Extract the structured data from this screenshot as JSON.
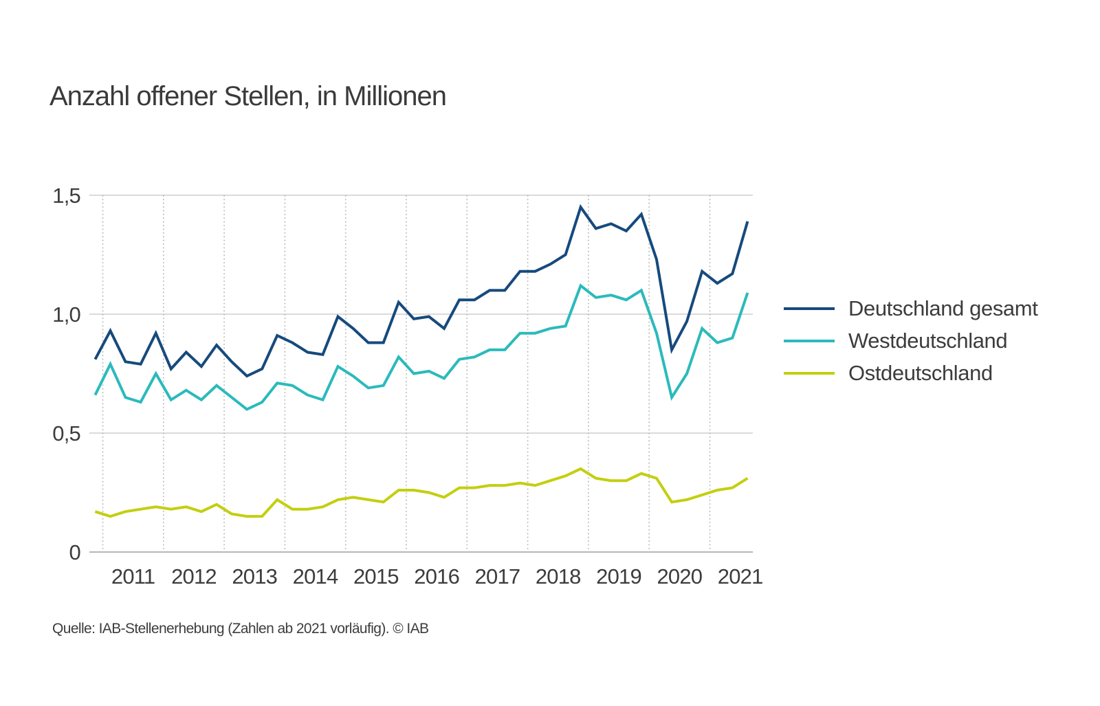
{
  "title": "Anzahl offener Stellen, in Millionen",
  "source": "Quelle: IAB-Stellenerhebung (Zahlen ab 2021 vorläufig). © IAB",
  "chart_data": {
    "type": "line",
    "title": "Anzahl offener Stellen, in Millionen",
    "xlabel": "",
    "ylabel": "Anzahl offener Stellen in Millionen",
    "ylim": [
      0,
      1.5
    ],
    "yticks": [
      "0",
      "0,5",
      "1,0",
      "1,5"
    ],
    "ytick_values": [
      0,
      0.5,
      1.0,
      1.5
    ],
    "grid": {
      "horizontal": "solid",
      "vertical": "dotted-per-year"
    },
    "legend_position": "right",
    "x_unit": "quarter",
    "year_labels": [
      "2011",
      "2012",
      "2013",
      "2014",
      "2015",
      "2016",
      "2017",
      "2018",
      "2019",
      "2020",
      "2021"
    ],
    "x": [
      "2010 Q4",
      "2011 Q1",
      "2011 Q2",
      "2011 Q3",
      "2011 Q4",
      "2012 Q1",
      "2012 Q2",
      "2012 Q3",
      "2012 Q4",
      "2013 Q1",
      "2013 Q2",
      "2013 Q3",
      "2013 Q4",
      "2014 Q1",
      "2014 Q2",
      "2014 Q3",
      "2014 Q4",
      "2015 Q1",
      "2015 Q2",
      "2015 Q3",
      "2015 Q4",
      "2016 Q1",
      "2016 Q2",
      "2016 Q3",
      "2016 Q4",
      "2017 Q1",
      "2017 Q2",
      "2017 Q3",
      "2017 Q4",
      "2018 Q1",
      "2018 Q2",
      "2018 Q3",
      "2018 Q4",
      "2019 Q1",
      "2019 Q2",
      "2019 Q3",
      "2019 Q4",
      "2020 Q1",
      "2020 Q2",
      "2020 Q3",
      "2020 Q4",
      "2021 Q1",
      "2021 Q2",
      "2021 Q3"
    ],
    "series": [
      {
        "name": "Deutschland gesamt",
        "color": "#164a7d",
        "values": [
          0.81,
          0.93,
          0.8,
          0.79,
          0.92,
          0.77,
          0.84,
          0.78,
          0.87,
          0.8,
          0.74,
          0.77,
          0.91,
          0.88,
          0.84,
          0.83,
          0.99,
          0.94,
          0.88,
          0.88,
          1.05,
          0.98,
          0.99,
          0.94,
          1.06,
          1.06,
          1.1,
          1.1,
          1.18,
          1.18,
          1.21,
          1.25,
          1.45,
          1.36,
          1.38,
          1.35,
          1.42,
          1.23,
          0.85,
          0.97,
          1.18,
          1.13,
          1.17,
          1.39
        ]
      },
      {
        "name": "Westdeutschland",
        "color": "#2bbabc",
        "values": [
          0.66,
          0.79,
          0.65,
          0.63,
          0.75,
          0.64,
          0.68,
          0.64,
          0.7,
          0.65,
          0.6,
          0.63,
          0.71,
          0.7,
          0.66,
          0.64,
          0.78,
          0.74,
          0.69,
          0.7,
          0.82,
          0.75,
          0.76,
          0.73,
          0.81,
          0.82,
          0.85,
          0.85,
          0.92,
          0.92,
          0.94,
          0.95,
          1.12,
          1.07,
          1.08,
          1.06,
          1.1,
          0.92,
          0.65,
          0.75,
          0.94,
          0.88,
          0.9,
          1.09
        ]
      },
      {
        "name": "Ostdeutschland",
        "color": "#c3cf0f",
        "values": [
          0.17,
          0.15,
          0.17,
          0.18,
          0.19,
          0.18,
          0.19,
          0.17,
          0.2,
          0.16,
          0.15,
          0.15,
          0.22,
          0.18,
          0.18,
          0.19,
          0.22,
          0.23,
          0.22,
          0.21,
          0.26,
          0.26,
          0.25,
          0.23,
          0.27,
          0.27,
          0.28,
          0.28,
          0.29,
          0.28,
          0.3,
          0.32,
          0.35,
          0.31,
          0.3,
          0.3,
          0.33,
          0.31,
          0.21,
          0.22,
          0.24,
          0.26,
          0.27,
          0.31
        ]
      }
    ]
  },
  "colors": {
    "grid_line": "#cdcdcd",
    "zero_line": "#9e9e9e",
    "year_dotted_line": "#b5b5b5",
    "text": "#3c3c3c"
  }
}
